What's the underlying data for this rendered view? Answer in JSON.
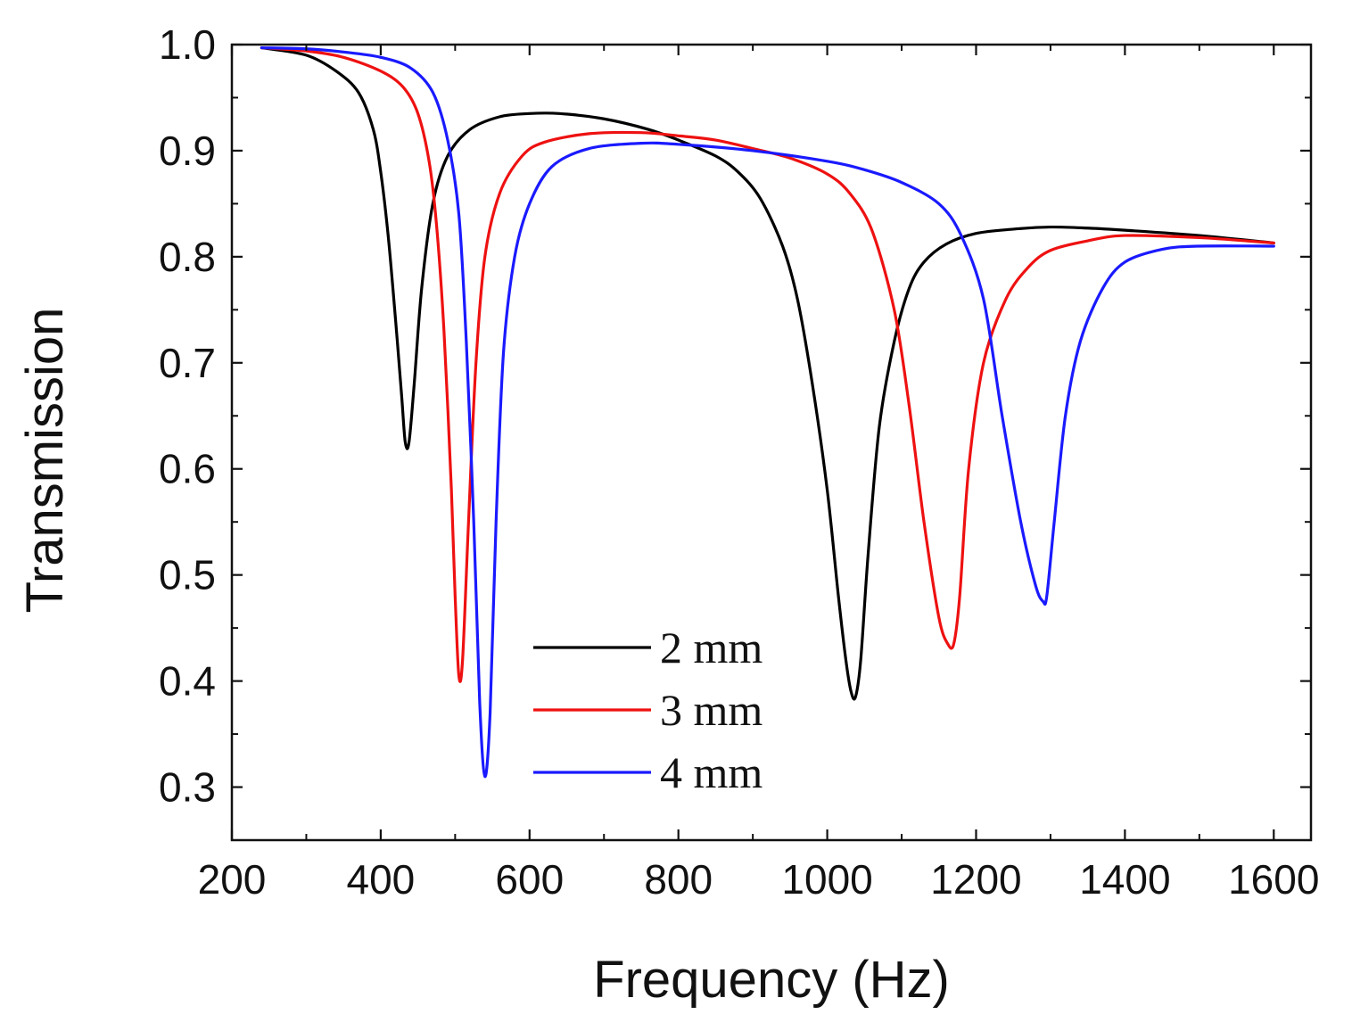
{
  "chart_data": {
    "type": "line",
    "title": "",
    "xlabel": "Frequency (Hz)",
    "ylabel": "Transmission",
    "xlim": [
      200,
      1650
    ],
    "ylim": [
      0.25,
      1.0
    ],
    "xticks": [
      200,
      400,
      600,
      800,
      1000,
      1200,
      1400,
      1600
    ],
    "xtick_labels": [
      "200",
      "400",
      "600",
      "800",
      "1000",
      "1200",
      "1400",
      "1600"
    ],
    "yticks": [
      0.3,
      0.4,
      0.5,
      0.6,
      0.7,
      0.8,
      0.9,
      1.0
    ],
    "ytick_labels": [
      "0.3",
      "0.4",
      "0.5",
      "0.6",
      "0.7",
      "0.8",
      "0.9",
      "1.0"
    ],
    "grid": false,
    "legend_position": "bottom-center",
    "series": [
      {
        "name": "2 mm",
        "color": "#000000",
        "x": [
          240,
          300,
          340,
          370,
          390,
          400,
          410,
          420,
          428,
          433,
          438,
          445,
          455,
          470,
          490,
          520,
          560,
          600,
          640,
          700,
          760,
          800,
          850,
          880,
          910,
          940,
          960,
          980,
          1000,
          1015,
          1025,
          1032,
          1038,
          1045,
          1055,
          1070,
          1090,
          1110,
          1130,
          1160,
          1200,
          1250,
          1300,
          1350,
          1400,
          1500,
          1600
        ],
        "y": [
          0.997,
          0.99,
          0.975,
          0.955,
          0.92,
          0.88,
          0.82,
          0.74,
          0.67,
          0.625,
          0.625,
          0.68,
          0.77,
          0.85,
          0.895,
          0.92,
          0.932,
          0.935,
          0.935,
          0.93,
          0.92,
          0.91,
          0.895,
          0.88,
          0.855,
          0.81,
          0.76,
          0.68,
          0.58,
          0.48,
          0.42,
          0.39,
          0.385,
          0.42,
          0.52,
          0.64,
          0.72,
          0.77,
          0.795,
          0.812,
          0.822,
          0.826,
          0.828,
          0.827,
          0.825,
          0.82,
          0.813
        ]
      },
      {
        "name": "3 mm",
        "color": "#ee1111",
        "x": [
          240,
          300,
          350,
          400,
          430,
          450,
          465,
          475,
          485,
          495,
          500,
          505,
          510,
          518,
          528,
          540,
          560,
          590,
          620,
          680,
          750,
          800,
          850,
          900,
          950,
          1000,
          1030,
          1060,
          1090,
          1110,
          1130,
          1150,
          1162,
          1170,
          1178,
          1190,
          1210,
          1240,
          1270,
          1300,
          1350,
          1400,
          1500,
          1600
        ],
        "y": [
          0.997,
          0.994,
          0.988,
          0.975,
          0.96,
          0.935,
          0.89,
          0.83,
          0.73,
          0.58,
          0.48,
          0.405,
          0.42,
          0.55,
          0.7,
          0.8,
          0.86,
          0.895,
          0.908,
          0.916,
          0.917,
          0.914,
          0.91,
          0.902,
          0.893,
          0.878,
          0.86,
          0.825,
          0.75,
          0.66,
          0.55,
          0.46,
          0.435,
          0.435,
          0.48,
          0.6,
          0.7,
          0.76,
          0.79,
          0.806,
          0.815,
          0.82,
          0.818,
          0.813
        ]
      },
      {
        "name": "4 mm",
        "color": "#1a1aff",
        "x": [
          240,
          300,
          350,
          400,
          440,
          470,
          490,
          505,
          515,
          525,
          533,
          540,
          547,
          555,
          565,
          580,
          600,
          630,
          680,
          750,
          800,
          900,
          1000,
          1050,
          1100,
          1150,
          1180,
          1210,
          1235,
          1260,
          1280,
          1290,
          1295,
          1305,
          1320,
          1340,
          1370,
          1400,
          1450,
          1500,
          1600
        ],
        "y": [
          0.997,
          0.996,
          0.993,
          0.988,
          0.978,
          0.955,
          0.91,
          0.84,
          0.72,
          0.55,
          0.38,
          0.31,
          0.37,
          0.55,
          0.71,
          0.8,
          0.85,
          0.885,
          0.902,
          0.907,
          0.906,
          0.9,
          0.89,
          0.882,
          0.87,
          0.85,
          0.82,
          0.76,
          0.65,
          0.55,
          0.49,
          0.475,
          0.48,
          0.55,
          0.65,
          0.72,
          0.77,
          0.795,
          0.807,
          0.81,
          0.81
        ]
      }
    ]
  }
}
